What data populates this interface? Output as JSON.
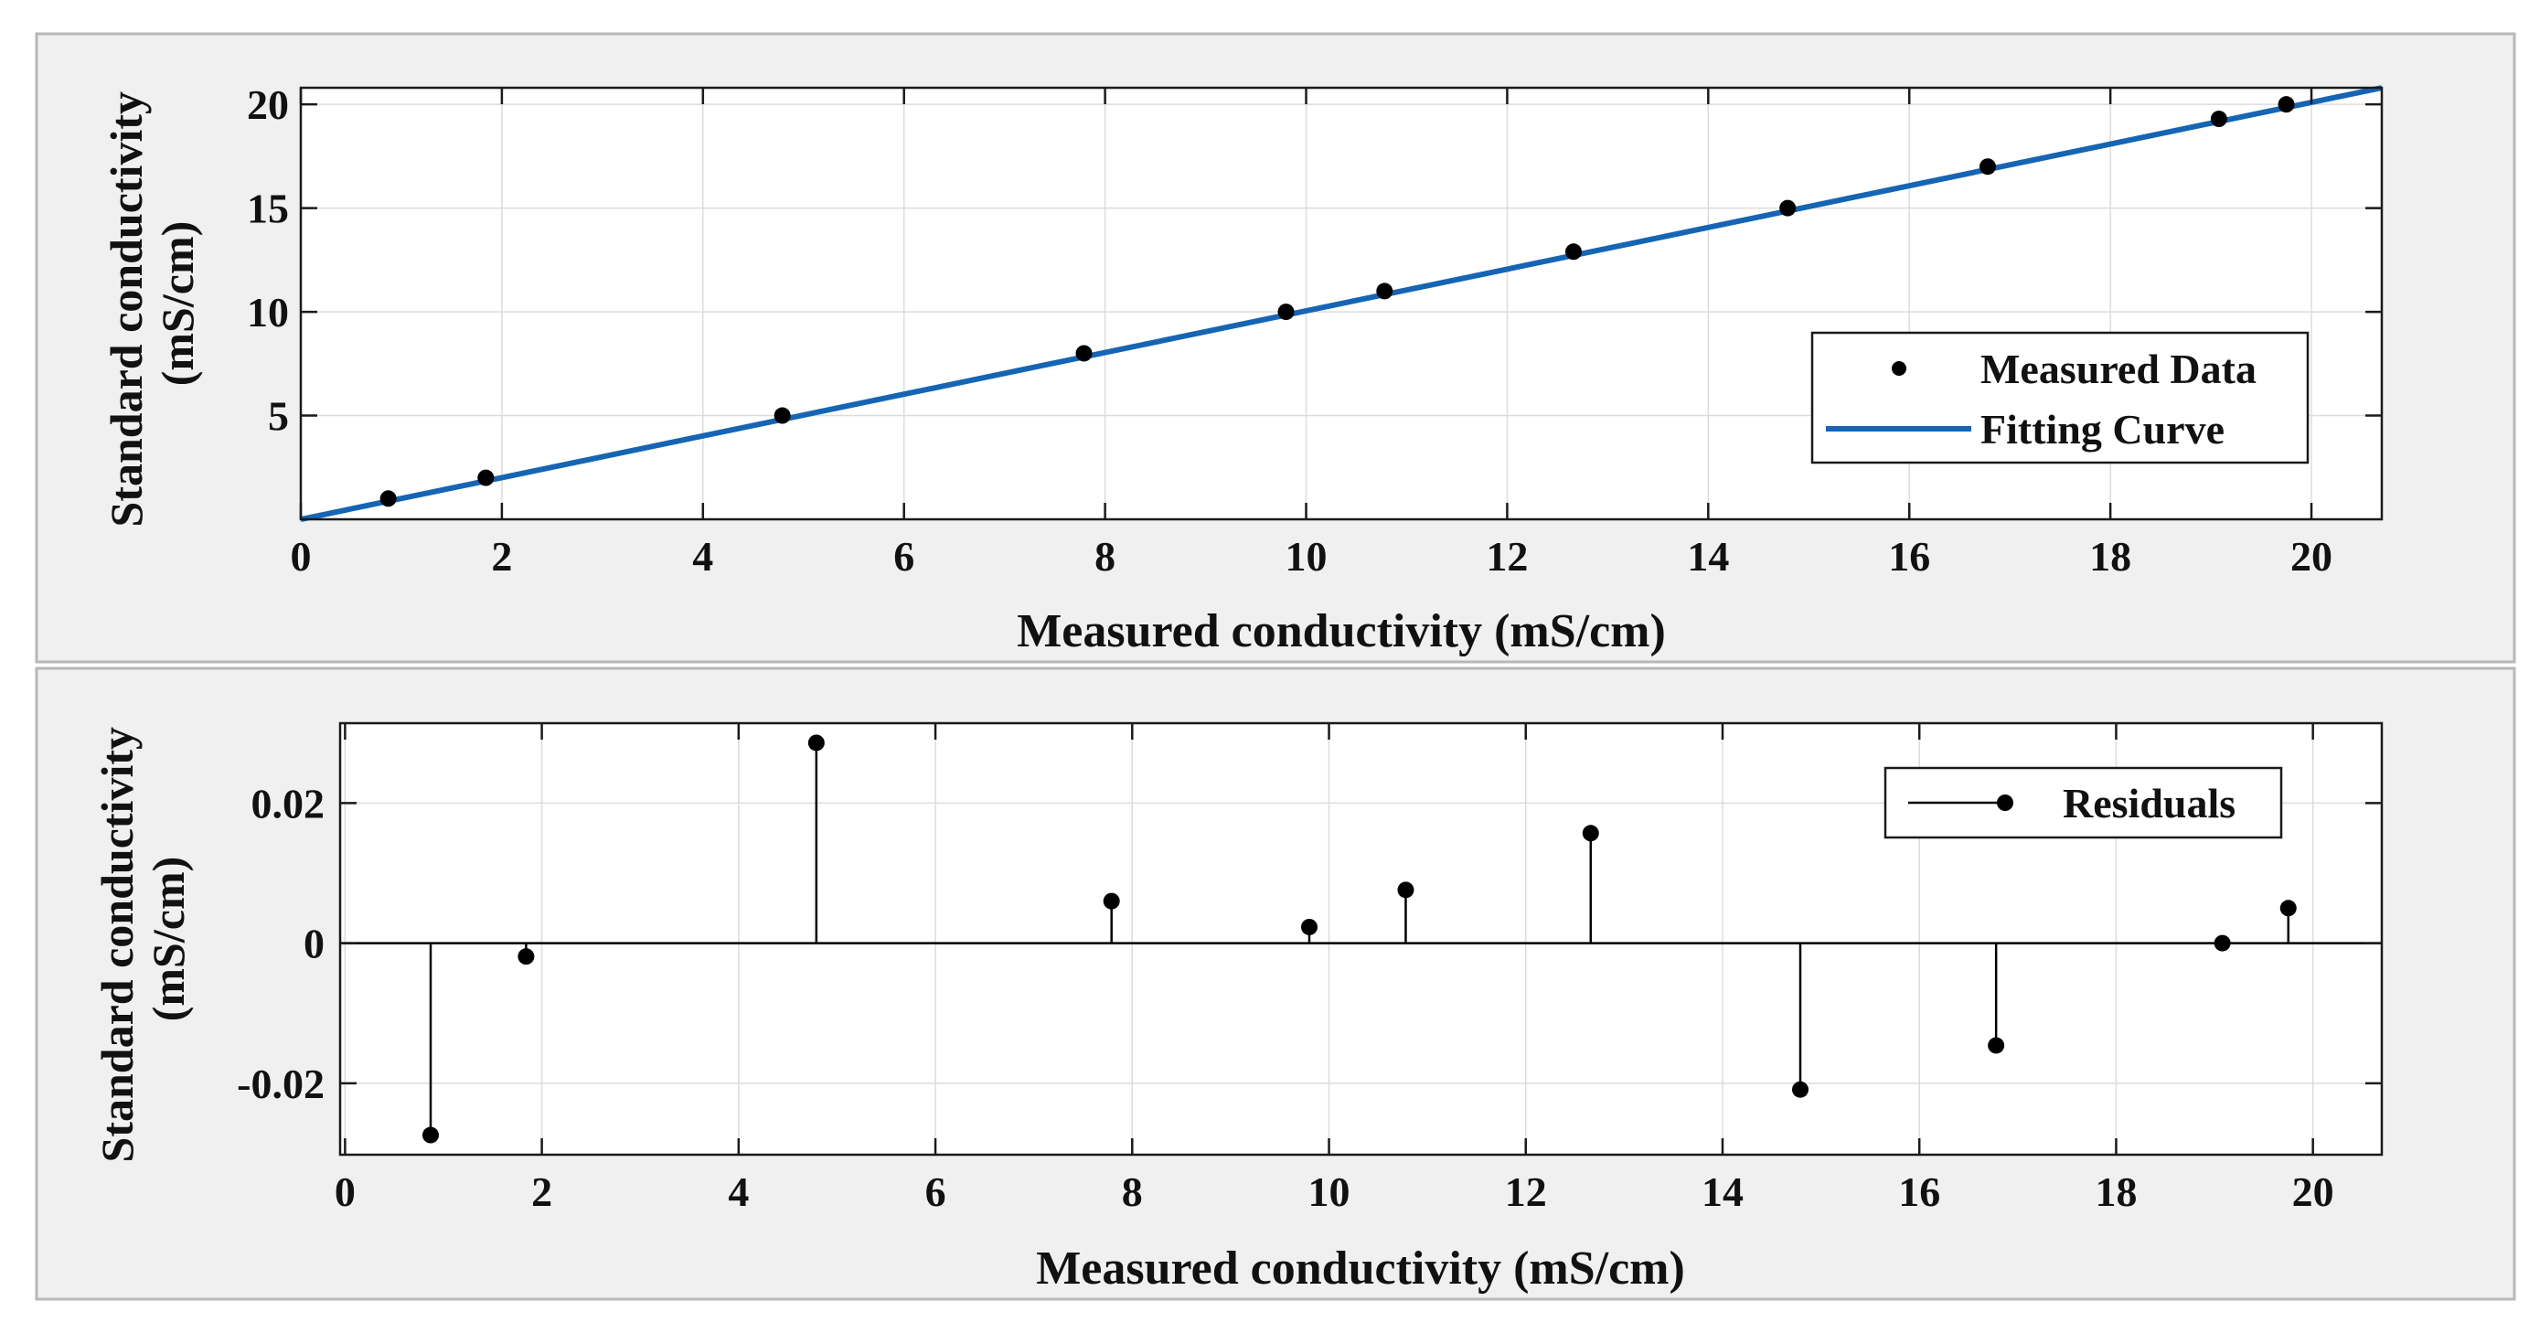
{
  "colors": {
    "panel_bg": "#f0f0f0",
    "panel_border": "#b7b7b7",
    "plot_bg": "#ffffff",
    "grid": "#dcdcdc",
    "axis": "#1a1a1a",
    "fit_line": "#1565b4",
    "marker": "#000000",
    "stem": "#000000"
  },
  "chart_data": [
    {
      "type": "scatter",
      "title": "",
      "xlabel": "Measured conductivity (mS/cm)",
      "ylabel": [
        "Standard conductivity",
        "(mS/cm)"
      ],
      "xlim": [
        0,
        20.7
      ],
      "ylim": [
        0,
        20.8
      ],
      "xticks": [
        0,
        2,
        4,
        6,
        8,
        10,
        12,
        14,
        16,
        18,
        20
      ],
      "xtick_labels": [
        "0",
        "2",
        "4",
        "6",
        "8",
        "10",
        "12",
        "14",
        "16",
        "18",
        "20"
      ],
      "yticks": [
        5,
        10,
        15,
        20
      ],
      "ytick_labels": [
        "5",
        "10",
        "15",
        "20"
      ],
      "grid": true,
      "legend": {
        "position": "right",
        "entries": [
          "Measured Data",
          "Fitting Curve"
        ]
      },
      "series": [
        {
          "name": "Measured Data",
          "kind": "markers",
          "x": [
            0.87,
            1.84,
            4.79,
            7.79,
            9.8,
            10.78,
            12.66,
            14.79,
            16.78,
            19.08,
            19.75
          ],
          "y": [
            1.0,
            2.0,
            5.0,
            8.0,
            10.0,
            11.0,
            12.9,
            15.0,
            17.0,
            19.3,
            20.0
          ]
        },
        {
          "name": "Fitting Curve",
          "kind": "line",
          "x": [
            0,
            20.7
          ],
          "y": [
            0,
            20.8
          ]
        }
      ]
    },
    {
      "type": "stem",
      "title": "",
      "xlabel": "Measured conductivity (mS/cm)",
      "ylabel": [
        "Standard conductivity",
        "(mS/cm)"
      ],
      "xlim": [
        -0.05,
        20.7
      ],
      "ylim": [
        -0.0302,
        0.0314
      ],
      "xticks": [
        0,
        2,
        4,
        6,
        8,
        10,
        12,
        14,
        16,
        18,
        20
      ],
      "xtick_labels": [
        "0",
        "2",
        "4",
        "6",
        "8",
        "10",
        "12",
        "14",
        "16",
        "18",
        "20"
      ],
      "yticks": [
        -0.02,
        0,
        0.02
      ],
      "ytick_labels": [
        "-0.02",
        "0",
        "0.02"
      ],
      "grid": true,
      "baseline": 0,
      "legend": {
        "position": "top-right",
        "entries": [
          "Residuals"
        ]
      },
      "series": [
        {
          "name": "Residuals",
          "x": [
            0.87,
            1.84,
            4.79,
            7.79,
            9.8,
            10.78,
            12.66,
            14.79,
            16.78,
            19.08,
            19.75
          ],
          "y": [
            -0.0274,
            -0.0019,
            0.0286,
            0.006,
            0.0023,
            0.0076,
            0.0157,
            -0.0209,
            -0.0146,
            0.0,
            0.005
          ]
        }
      ]
    }
  ]
}
